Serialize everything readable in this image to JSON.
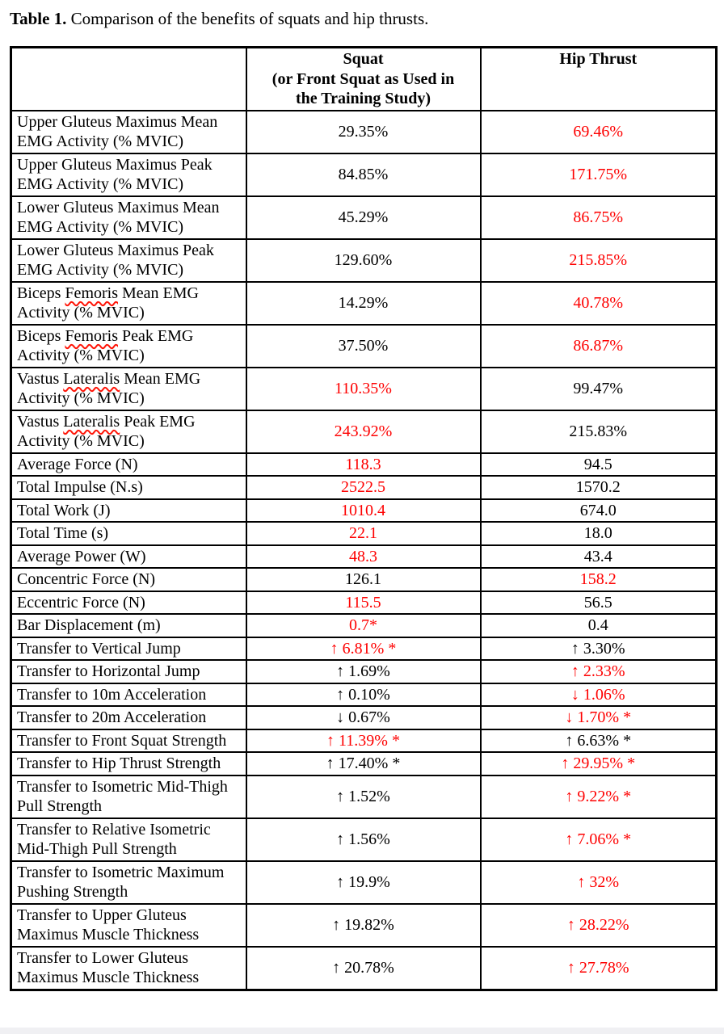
{
  "title": {
    "label": "Table 1.",
    "text": " Comparison of the benefits of squats and hip thrusts."
  },
  "colors": {
    "highlight_red": "#fe0000",
    "text_black": "#000000",
    "spellcheck_red": "#ff1508",
    "border_black": "#000000"
  },
  "table": {
    "header": {
      "metric": "",
      "squat": "Squat\n(or Front Squat as Used in\nthe Training Study)",
      "hip_thrust": "Hip Thrust"
    },
    "rows": [
      {
        "label": "Upper Gluteus Maximus Mean EMG Activity (% MVIC)",
        "squat": "29.35%",
        "squat_red": false,
        "hip_thrust": "69.46%",
        "hip_red": true,
        "misspelled": []
      },
      {
        "label": "Upper Gluteus Maximus Peak EMG Activity (% MVIC)",
        "squat": "84.85%",
        "squat_red": false,
        "hip_thrust": "171.75%",
        "hip_red": true,
        "misspelled": []
      },
      {
        "label": "Lower Gluteus Maximus Mean EMG Activity (% MVIC)",
        "squat": "45.29%",
        "squat_red": false,
        "hip_thrust": "86.75%",
        "hip_red": true,
        "misspelled": []
      },
      {
        "label": "Lower Gluteus Maximus Peak EMG Activity (% MVIC)",
        "squat": "129.60%",
        "squat_red": false,
        "hip_thrust": "215.85%",
        "hip_red": true,
        "misspelled": []
      },
      {
        "label": "Biceps Femoris Mean EMG Activity (% MVIC)",
        "squat": "14.29%",
        "squat_red": false,
        "hip_thrust": "40.78%",
        "hip_red": true,
        "misspelled": [
          "Femoris"
        ]
      },
      {
        "label": "Biceps Femoris Peak EMG Activity (% MVIC)",
        "squat": "37.50%",
        "squat_red": false,
        "hip_thrust": "86.87%",
        "hip_red": true,
        "misspelled": [
          "Femoris"
        ]
      },
      {
        "label": "Vastus Lateralis Mean EMG Activity (% MVIC)",
        "squat": "110.35%",
        "squat_red": true,
        "hip_thrust": "99.47%",
        "hip_red": false,
        "misspelled": [
          "Lateralis"
        ]
      },
      {
        "label": "Vastus Lateralis Peak EMG Activity (% MVIC)",
        "squat": "243.92%",
        "squat_red": true,
        "hip_thrust": "215.83%",
        "hip_red": false,
        "misspelled": [
          "Lateralis"
        ]
      },
      {
        "label": "Average Force (N)",
        "squat": "118.3",
        "squat_red": true,
        "hip_thrust": "94.5",
        "hip_red": false,
        "misspelled": []
      },
      {
        "label": "Total Impulse (N.s)",
        "squat": "2522.5",
        "squat_red": true,
        "hip_thrust": "1570.2",
        "hip_red": false,
        "misspelled": []
      },
      {
        "label": "Total Work (J)",
        "squat": "1010.4",
        "squat_red": true,
        "hip_thrust": "674.0",
        "hip_red": false,
        "misspelled": []
      },
      {
        "label": "Total Time (s)",
        "squat": "22.1",
        "squat_red": true,
        "hip_thrust": "18.0",
        "hip_red": false,
        "misspelled": []
      },
      {
        "label": "Average Power (W)",
        "squat": "48.3",
        "squat_red": true,
        "hip_thrust": "43.4",
        "hip_red": false,
        "misspelled": []
      },
      {
        "label": "Concentric Force (N)",
        "squat": "126.1",
        "squat_red": false,
        "hip_thrust": "158.2",
        "hip_red": true,
        "misspelled": []
      },
      {
        "label": "Eccentric Force (N)",
        "squat": "115.5",
        "squat_red": true,
        "hip_thrust": "56.5",
        "hip_red": false,
        "misspelled": []
      },
      {
        "label": "Bar Displacement (m)",
        "squat": "0.7*",
        "squat_red": true,
        "hip_thrust": "0.4",
        "hip_red": false,
        "misspelled": []
      },
      {
        "label": "Transfer to Vertical Jump",
        "squat": "↑ 6.81% *",
        "squat_red": true,
        "hip_thrust": "↑ 3.30%",
        "hip_red": false,
        "misspelled": []
      },
      {
        "label": "Transfer to Horizontal Jump",
        "squat": "↑ 1.69%",
        "squat_red": false,
        "hip_thrust": "↑ 2.33%",
        "hip_red": true,
        "misspelled": []
      },
      {
        "label": "Transfer to 10m Acceleration",
        "squat": "↑ 0.10%",
        "squat_red": false,
        "hip_thrust": "↓ 1.06%",
        "hip_red": true,
        "misspelled": []
      },
      {
        "label": "Transfer to 20m Acceleration",
        "squat": "↓ 0.67%",
        "squat_red": false,
        "hip_thrust": "↓ 1.70% *",
        "hip_red": true,
        "misspelled": []
      },
      {
        "label": "Transfer to Front Squat Strength",
        "squat": "↑ 11.39% *",
        "squat_red": true,
        "hip_thrust": "↑ 6.63% *",
        "hip_red": false,
        "misspelled": []
      },
      {
        "label": "Transfer to Hip Thrust Strength",
        "squat": "↑ 17.40% *",
        "squat_red": false,
        "hip_thrust": "↑ 29.95% *",
        "hip_red": true,
        "misspelled": []
      },
      {
        "label": "Transfer to Isometric Mid-Thigh Pull Strength",
        "squat": "↑ 1.52%",
        "squat_red": false,
        "hip_thrust": "↑ 9.22% *",
        "hip_red": true,
        "misspelled": []
      },
      {
        "label": "Transfer to Relative Isometric Mid-Thigh Pull Strength",
        "squat": "↑ 1.56%",
        "squat_red": false,
        "hip_thrust": "↑ 7.06% *",
        "hip_red": true,
        "misspelled": []
      },
      {
        "label": "Transfer to Isometric Maximum Pushing Strength",
        "squat": "↑ 19.9%",
        "squat_red": false,
        "hip_thrust": "↑ 32%",
        "hip_red": true,
        "misspelled": []
      },
      {
        "label": "Transfer to Upper Gluteus Maximus Muscle Thickness",
        "squat": "↑ 19.82%",
        "squat_red": false,
        "hip_thrust": "↑ 28.22%",
        "hip_red": true,
        "misspelled": []
      },
      {
        "label": "Transfer to Lower Gluteus Maximus Muscle Thickness",
        "squat": "↑ 20.78%",
        "squat_red": false,
        "hip_thrust": "↑ 27.78%",
        "hip_red": true,
        "misspelled": []
      }
    ]
  }
}
